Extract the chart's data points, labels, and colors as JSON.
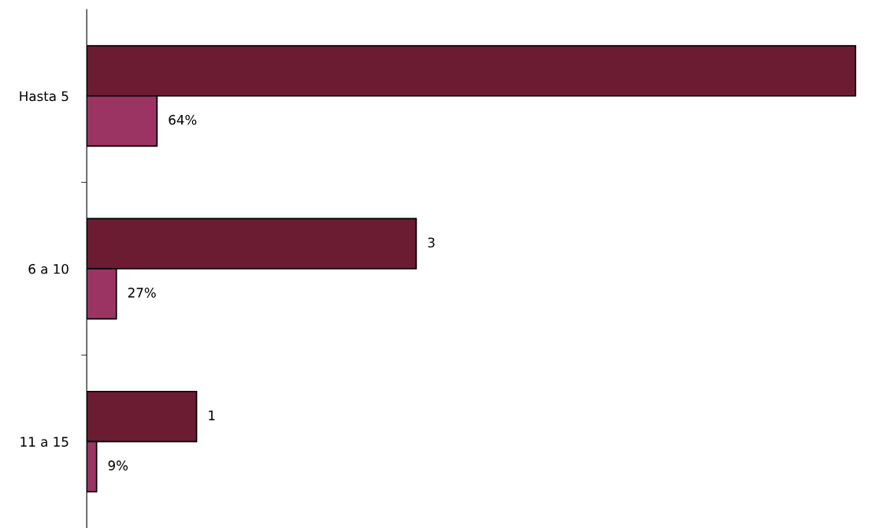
{
  "chart_data": {
    "type": "bar",
    "orientation": "horizontal",
    "categories": [
      "Hasta 5",
      "6 a 10",
      "11 a 15"
    ],
    "series": [
      {
        "color": "#6b1c32",
        "values": [
          7,
          3,
          1
        ],
        "value_labels": [
          null,
          "3",
          "1"
        ]
      },
      {
        "color": "#9b3463",
        "values": [
          0.64,
          0.27,
          0.09
        ],
        "value_labels": [
          "64%",
          "27%",
          "9%"
        ]
      }
    ],
    "grid": false,
    "legend": false
  }
}
